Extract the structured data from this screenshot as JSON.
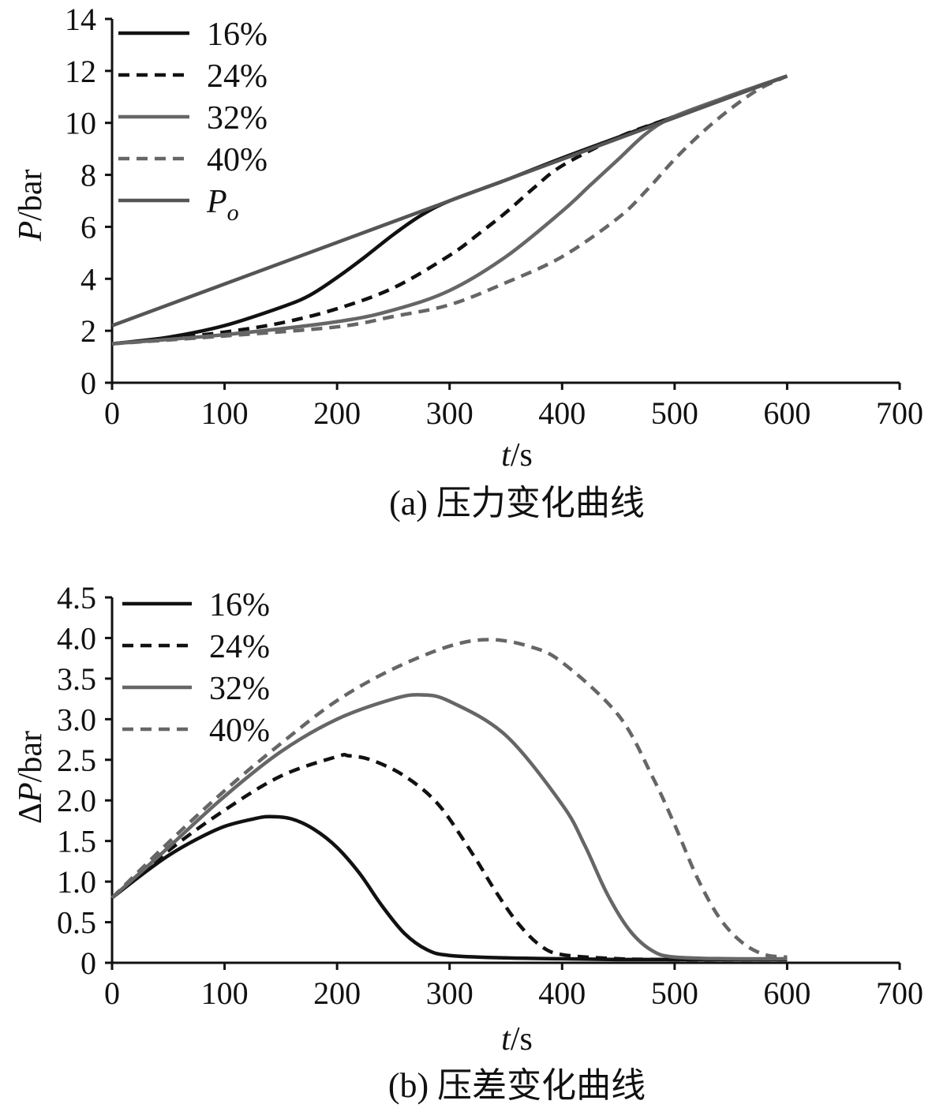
{
  "chart_data": [
    {
      "type": "line",
      "caption": "(a) 压力变化曲线",
      "xlabel_var": "t",
      "xlabel_unit": "/s",
      "ylabel_var": "P",
      "ylabel_unit": "/bar",
      "xlim": [
        0,
        700
      ],
      "ylim": [
        0,
        14
      ],
      "xticks": [
        "0",
        "100",
        "200",
        "300",
        "400",
        "500",
        "600",
        "700"
      ],
      "yticks": [
        "0",
        "2",
        "4",
        "6",
        "8",
        "10",
        "12",
        "14"
      ],
      "legend_position": "top-left",
      "series": [
        {
          "name": "16%",
          "style": "solid",
          "color": "#111111",
          "x": [
            0,
            50,
            100,
            150,
            175,
            200,
            225,
            250,
            275,
            300,
            350,
            400,
            450,
            500,
            550,
            600
          ],
          "y": [
            1.5,
            1.75,
            2.2,
            2.9,
            3.35,
            4.05,
            4.85,
            5.7,
            6.45,
            7.0,
            7.8,
            8.65,
            9.45,
            10.25,
            11.05,
            11.8
          ]
        },
        {
          "name": "24%",
          "style": "dashed",
          "color": "#111111",
          "x": [
            0,
            50,
            100,
            150,
            200,
            250,
            300,
            325,
            350,
            375,
            400,
            450,
            500,
            550,
            600
          ],
          "y": [
            1.5,
            1.7,
            1.95,
            2.3,
            2.85,
            3.65,
            4.9,
            5.7,
            6.55,
            7.5,
            8.35,
            9.45,
            10.25,
            11.05,
            11.8
          ]
        },
        {
          "name": "32%",
          "style": "solid",
          "color": "#666666",
          "x": [
            0,
            100,
            200,
            250,
            300,
            350,
            400,
            425,
            450,
            475,
            500,
            550,
            600
          ],
          "y": [
            1.5,
            1.85,
            2.35,
            2.8,
            3.55,
            4.85,
            6.6,
            7.6,
            8.6,
            9.6,
            10.25,
            11.05,
            11.8
          ]
        },
        {
          "name": "40%",
          "style": "dashed",
          "color": "#666666",
          "x": [
            0,
            100,
            200,
            250,
            300,
            350,
            400,
            450,
            475,
            500,
            525,
            550,
            575,
            600
          ],
          "y": [
            1.5,
            1.8,
            2.15,
            2.55,
            3.0,
            3.85,
            4.85,
            6.35,
            7.4,
            8.6,
            9.65,
            10.55,
            11.3,
            11.8
          ]
        },
        {
          "name": "Po",
          "style": "solid",
          "color": "#555555",
          "x": [
            0,
            600
          ],
          "y": [
            2.2,
            11.8
          ]
        }
      ]
    },
    {
      "type": "line",
      "caption": "(b) 压差变化曲线",
      "xlabel_var": "t",
      "xlabel_unit": "/s",
      "ylabel_prefix": "Δ",
      "ylabel_var": "P",
      "ylabel_unit": "/bar",
      "xlim": [
        0,
        700
      ],
      "ylim": [
        0,
        4.5
      ],
      "xticks": [
        "0",
        "100",
        "200",
        "300",
        "400",
        "500",
        "600",
        "700"
      ],
      "yticks": [
        "0",
        "0.5",
        "1.0",
        "1.5",
        "2.0",
        "2.5",
        "3.0",
        "3.5",
        "4.0",
        "4.5"
      ],
      "legend_position": "top-left",
      "series": [
        {
          "name": "16%",
          "style": "solid",
          "color": "#111111",
          "x": [
            0,
            25,
            50,
            75,
            100,
            125,
            140,
            160,
            180,
            200,
            220,
            240,
            260,
            280,
            300,
            350,
            400,
            450,
            500,
            550,
            600
          ],
          "y": [
            0.8,
            1.07,
            1.32,
            1.52,
            1.68,
            1.77,
            1.8,
            1.77,
            1.64,
            1.42,
            1.1,
            0.7,
            0.36,
            0.16,
            0.09,
            0.06,
            0.05,
            0.04,
            0.04,
            0.04,
            0.04
          ]
        },
        {
          "name": "24%",
          "style": "dashed",
          "color": "#111111",
          "x": [
            0,
            50,
            100,
            150,
            200,
            210,
            230,
            260,
            290,
            320,
            340,
            360,
            380,
            400,
            450,
            500,
            550,
            600
          ],
          "y": [
            0.8,
            1.38,
            1.88,
            2.3,
            2.54,
            2.55,
            2.5,
            2.3,
            1.95,
            1.35,
            0.9,
            0.5,
            0.22,
            0.1,
            0.05,
            0.04,
            0.04,
            0.04
          ]
        },
        {
          "name": "32%",
          "style": "solid",
          "color": "#666666",
          "x": [
            0,
            50,
            100,
            150,
            200,
            250,
            275,
            300,
            350,
            400,
            420,
            440,
            460,
            480,
            500,
            550,
            600
          ],
          "y": [
            0.8,
            1.42,
            2.05,
            2.6,
            3.0,
            3.25,
            3.3,
            3.22,
            2.8,
            1.95,
            1.45,
            0.85,
            0.4,
            0.15,
            0.07,
            0.05,
            0.05
          ]
        },
        {
          "name": "40%",
          "style": "dashed",
          "color": "#666666",
          "x": [
            0,
            50,
            100,
            150,
            200,
            250,
            300,
            335,
            370,
            400,
            450,
            480,
            500,
            520,
            540,
            560,
            580,
            600
          ],
          "y": [
            0.8,
            1.48,
            2.12,
            2.7,
            3.23,
            3.62,
            3.9,
            3.98,
            3.9,
            3.7,
            3.05,
            2.3,
            1.7,
            1.05,
            0.55,
            0.25,
            0.1,
            0.07
          ]
        }
      ]
    }
  ]
}
